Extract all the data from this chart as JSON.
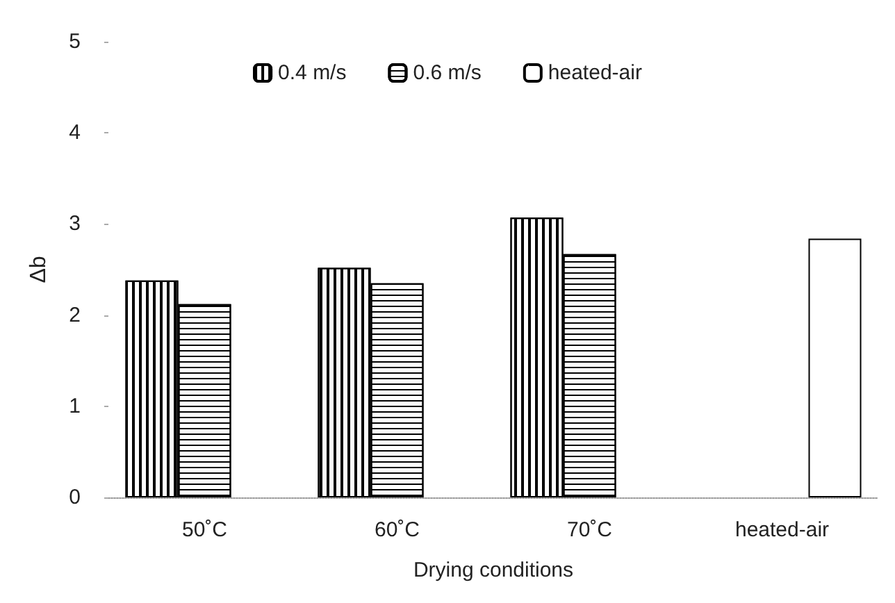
{
  "chart_data": {
    "type": "bar",
    "xlabel": "Drying conditions",
    "ylabel": "Δb",
    "categories": [
      "50˚C",
      "60˚C",
      "70˚C",
      "heated-air"
    ],
    "series": [
      {
        "name": "0.4 m/s",
        "color": "#ffffff",
        "values": [
          2.38,
          2.52,
          3.07,
          null
        ]
      },
      {
        "name": "0.6 m/s",
        "color": "#ffffff",
        "values": [
          2.12,
          2.35,
          2.67,
          null
        ]
      },
      {
        "name": "heated-air",
        "color": "#ffffff",
        "values": [
          null,
          null,
          null,
          2.84
        ]
      }
    ],
    "ylim": [
      0,
      5
    ],
    "yticks": [
      0,
      1,
      2,
      3,
      4,
      5
    ],
    "grid": false,
    "legend": "top"
  }
}
